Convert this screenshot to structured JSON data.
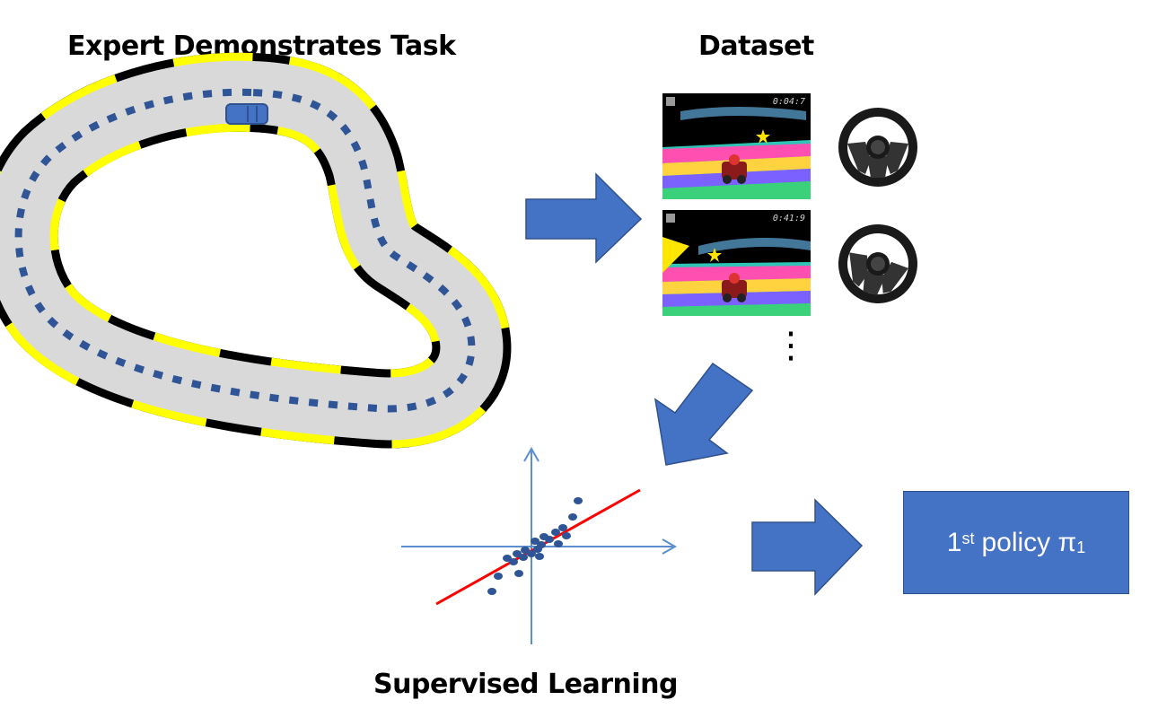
{
  "headings": {
    "expert": "Expert Demonstrates Task",
    "dataset": "Dataset",
    "supervised": "Supervised Learning"
  },
  "dataset_frames": [
    {
      "timestamp": "0:04:7"
    },
    {
      "timestamp": "0:41:9"
    }
  ],
  "more_indicator": "⋮",
  "policy": {
    "ordinal_number": "1",
    "ordinal_suffix": "st",
    "word": "policy",
    "symbol": "π",
    "subscript": "1"
  },
  "colors": {
    "arrow": "#4472c4",
    "track": "#d9d9d9",
    "edge_yellow": "#ffff00",
    "edge_black": "#000000",
    "path_dash": "#2f5597",
    "axis": "#5b8fd0",
    "fit_line": "#ff0000",
    "points": "#2f5597"
  },
  "icons": [
    "race-car-icon",
    "steering-wheel-icon",
    "vertical-ellipsis-icon"
  ]
}
